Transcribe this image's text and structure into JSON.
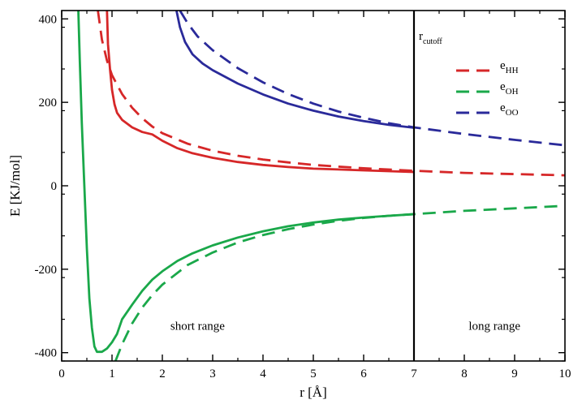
{
  "chart_data": {
    "type": "line",
    "xlabel": "r [Å]",
    "ylabel": "E [KJ/mol]",
    "xlim": [
      0,
      10
    ],
    "ylim": [
      -420,
      420
    ],
    "xticks": [
      0,
      1,
      2,
      3,
      4,
      5,
      6,
      7,
      8,
      9,
      10
    ],
    "yticks": [
      -400,
      -200,
      0,
      200,
      400
    ],
    "grid": false,
    "legend_position": "top-right",
    "cutoff": {
      "x": 7,
      "label_main": "r",
      "label_sub": "cutoff"
    },
    "annotations": [
      {
        "text": "short range",
        "x": 2.7,
        "y": -345
      },
      {
        "text": "long range",
        "x": 8.6,
        "y": -345
      }
    ],
    "series": [
      {
        "key": "hh_solid",
        "legend_main": "e",
        "legend_sub": "HH",
        "color": "#d62728",
        "dash": false,
        "points": [
          [
            0.9,
            420
          ],
          [
            0.92,
            340
          ],
          [
            0.96,
            280
          ],
          [
            1.0,
            230
          ],
          [
            1.05,
            195
          ],
          [
            1.1,
            175
          ],
          [
            1.2,
            158
          ],
          [
            1.4,
            140
          ],
          [
            1.6,
            129
          ],
          [
            1.8,
            123
          ],
          [
            2.0,
            108
          ],
          [
            2.3,
            90
          ],
          [
            2.6,
            78
          ],
          [
            3.0,
            67
          ],
          [
            3.5,
            57
          ],
          [
            4.0,
            50
          ],
          [
            4.5,
            45
          ],
          [
            5.0,
            41
          ],
          [
            5.5,
            39
          ],
          [
            6.0,
            37
          ],
          [
            6.5,
            35
          ],
          [
            7.0,
            33
          ]
        ]
      },
      {
        "key": "hh_dashed",
        "legend_main": "",
        "legend_sub": "",
        "color": "#d62728",
        "dash": true,
        "points": [
          [
            0.72,
            420
          ],
          [
            0.8,
            350
          ],
          [
            0.9,
            300
          ],
          [
            1.0,
            265
          ],
          [
            1.2,
            220
          ],
          [
            1.4,
            187
          ],
          [
            1.6,
            162
          ],
          [
            1.8,
            142
          ],
          [
            2.0,
            126
          ],
          [
            2.5,
            101
          ],
          [
            3.0,
            84
          ],
          [
            3.5,
            72
          ],
          [
            4.0,
            63
          ],
          [
            4.5,
            56
          ],
          [
            5.0,
            50
          ],
          [
            6.0,
            42
          ],
          [
            7.0,
            36
          ],
          [
            8.0,
            31
          ],
          [
            9.0,
            28
          ],
          [
            10.0,
            25
          ]
        ]
      },
      {
        "key": "oh_solid",
        "legend_main": "e",
        "legend_sub": "OH",
        "color": "#1aa84a",
        "dash": false,
        "points": [
          [
            0.33,
            420
          ],
          [
            0.36,
            300
          ],
          [
            0.4,
            150
          ],
          [
            0.45,
            0
          ],
          [
            0.5,
            -150
          ],
          [
            0.55,
            -270
          ],
          [
            0.6,
            -340
          ],
          [
            0.65,
            -385
          ],
          [
            0.7,
            -398
          ],
          [
            0.8,
            -398
          ],
          [
            0.9,
            -390
          ],
          [
            1.0,
            -375
          ],
          [
            1.1,
            -355
          ],
          [
            1.2,
            -320
          ],
          [
            1.4,
            -285
          ],
          [
            1.6,
            -252
          ],
          [
            1.8,
            -225
          ],
          [
            2.0,
            -205
          ],
          [
            2.3,
            -180
          ],
          [
            2.6,
            -162
          ],
          [
            3.0,
            -143
          ],
          [
            3.5,
            -124
          ],
          [
            4.0,
            -109
          ],
          [
            4.5,
            -97
          ],
          [
            5.0,
            -88
          ],
          [
            5.5,
            -81
          ],
          [
            6.0,
            -76
          ],
          [
            6.5,
            -72
          ],
          [
            7.0,
            -68
          ]
        ]
      },
      {
        "key": "oh_dashed",
        "legend_main": "",
        "legend_sub": "",
        "color": "#1aa84a",
        "dash": true,
        "points": [
          [
            1.07,
            -420
          ],
          [
            1.2,
            -380
          ],
          [
            1.4,
            -330
          ],
          [
            1.6,
            -292
          ],
          [
            1.8,
            -262
          ],
          [
            2.0,
            -237
          ],
          [
            2.5,
            -190
          ],
          [
            3.0,
            -160
          ],
          [
            3.5,
            -136
          ],
          [
            4.0,
            -118
          ],
          [
            4.5,
            -104
          ],
          [
            5.0,
            -93
          ],
          [
            5.5,
            -84
          ],
          [
            6.0,
            -77
          ],
          [
            6.5,
            -72
          ],
          [
            7.0,
            -68
          ],
          [
            8.0,
            -60
          ],
          [
            9.0,
            -54
          ],
          [
            10.0,
            -48
          ]
        ]
      },
      {
        "key": "oo_solid",
        "legend_main": "e",
        "legend_sub": "OO",
        "color": "#2a2a9a",
        "dash": false,
        "points": [
          [
            2.28,
            420
          ],
          [
            2.35,
            380
          ],
          [
            2.45,
            345
          ],
          [
            2.6,
            315
          ],
          [
            2.8,
            293
          ],
          [
            3.0,
            277
          ],
          [
            3.5,
            245
          ],
          [
            4.0,
            219
          ],
          [
            4.5,
            197
          ],
          [
            5.0,
            180
          ],
          [
            5.5,
            166
          ],
          [
            6.0,
            155
          ],
          [
            6.5,
            146
          ],
          [
            7.0,
            139
          ]
        ]
      },
      {
        "key": "oo_dashed",
        "legend_main": "",
        "legend_sub": "",
        "color": "#2a2a9a",
        "dash": true,
        "points": [
          [
            2.35,
            420
          ],
          [
            2.5,
            390
          ],
          [
            2.7,
            358
          ],
          [
            3.0,
            325
          ],
          [
            3.5,
            282
          ],
          [
            4.0,
            248
          ],
          [
            4.5,
            220
          ],
          [
            5.0,
            197
          ],
          [
            5.5,
            178
          ],
          [
            6.0,
            163
          ],
          [
            6.5,
            150
          ],
          [
            7.0,
            140
          ],
          [
            8.0,
            124
          ],
          [
            9.0,
            110
          ],
          [
            10.0,
            97
          ]
        ]
      }
    ]
  }
}
